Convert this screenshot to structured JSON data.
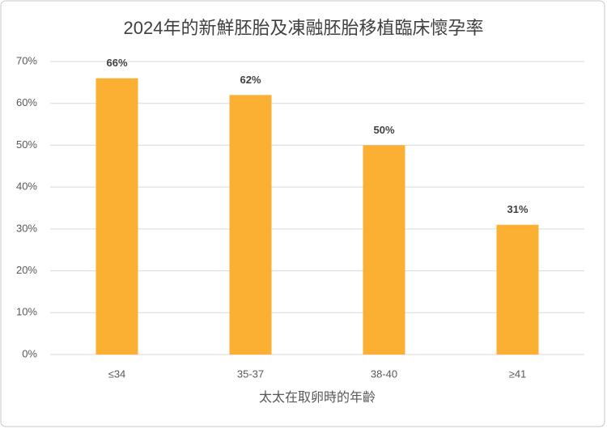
{
  "chart_data": {
    "type": "bar",
    "title": "2024年的新鮮胚胎及凍融胚胎移植臨床懷孕率",
    "x_label": "太太在取卵時的年齡",
    "categories": [
      "≤34",
      "35-37",
      "38-40",
      "≥41"
    ],
    "values": [
      66,
      62,
      50,
      31
    ],
    "value_labels": [
      "66%",
      "62%",
      "50%",
      "31%"
    ],
    "color": "#fbb034",
    "ylim": [
      0,
      70
    ],
    "yticks": [
      {
        "value": 0,
        "label": "0%"
      },
      {
        "value": 10,
        "label": "10%"
      },
      {
        "value": 20,
        "label": "20%"
      },
      {
        "value": 30,
        "label": "30%"
      },
      {
        "value": 40,
        "label": "40%"
      },
      {
        "value": 50,
        "label": "50%"
      },
      {
        "value": 60,
        "label": "60%"
      },
      {
        "value": 70,
        "label": "70%"
      }
    ],
    "grid": true
  }
}
